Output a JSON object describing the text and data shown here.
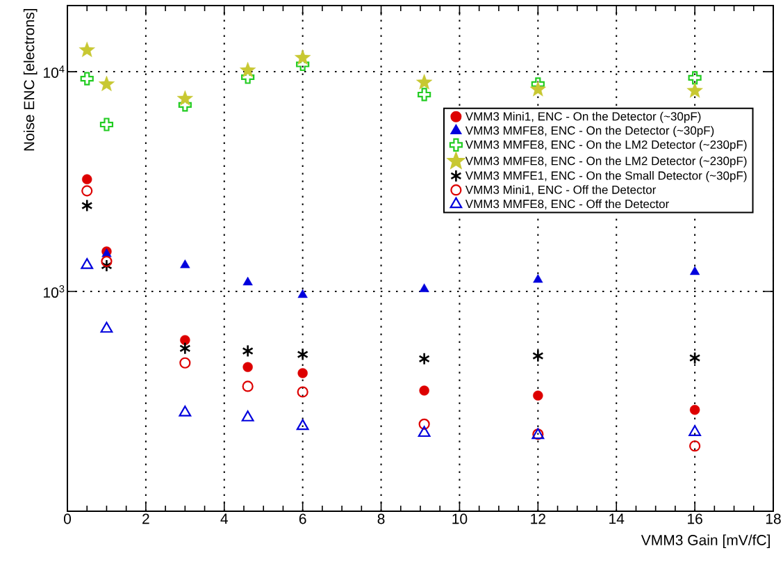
{
  "chart_data": {
    "type": "scatter",
    "xlabel": "VMM3 Gain [mV/fC]",
    "ylabel": "Noise ENC [electrons]",
    "x": [
      0.5,
      1,
      3,
      4.6,
      6,
      9.1,
      12,
      16
    ],
    "xlim": [
      0,
      18
    ],
    "xticks": [
      0,
      2,
      4,
      6,
      8,
      10,
      12,
      14,
      16,
      18
    ],
    "ylim": [
      100,
      20000
    ],
    "yticks": [
      {
        "value": 1000,
        "label": "10$^{3}$"
      },
      {
        "value": 10000,
        "label": "10$^{4}$"
      }
    ],
    "log": "y",
    "grid": true,
    "legend": "top right",
    "series": [
      {
        "name": "VMM3 Mini1, ENC  - On the Detector (~30pF)",
        "color": "#dd0000",
        "marker": "circle",
        "values": [
          3240,
          1520,
          601,
          453,
          425,
          354,
          336,
          289
        ]
      },
      {
        "name": "VMM3 MMFE8, ENC  - On the Detector (~30pF)",
        "color": "#0000dd",
        "marker": "triangle",
        "values": [
          null,
          1480,
          1318,
          1099,
          964,
          1025,
          1131,
          1226
        ]
      },
      {
        "name": "VMM3 MMFE8, ENC  - On the LM2 Detector (~230pF)",
        "color": "#22cc22",
        "values": [
          9290,
          5750,
          7060,
          9440,
          10800,
          7870,
          8790,
          9380
        ]
      },
      {
        "name": "VMM3 MMFE8, ENC  - On the LM2 Detector (~230pF)",
        "color": "#c8c832",
        "marker": "star",
        "values": [
          12530,
          8770,
          7530,
          10140,
          11560,
          8930,
          8300,
          8180
        ]
      },
      {
        "name": "VMM3 MMFE1, ENC  - On the Small Detector (~30pF)",
        "color": "#000000",
        "marker": "cross",
        "values": [
          2460,
          1310,
          551,
          536,
          517,
          494,
          509,
          498
        ]
      },
      {
        "name": "VMM3 Mini1, ENC - Off the Detector",
        "color": "#dd0000",
        "marker": "circle open",
        "values": [
          2870,
          1370,
          473,
          370,
          349,
          249,
          224,
          198
        ]
      },
      {
        "name": "VMM3 MMFE8, ENC - Off the Detector",
        "color": "#0000dd",
        "marker": "triangle open",
        "values": [
          1318,
          676,
          281,
          267,
          244,
          227,
          222,
          229
        ]
      }
    ]
  }
}
